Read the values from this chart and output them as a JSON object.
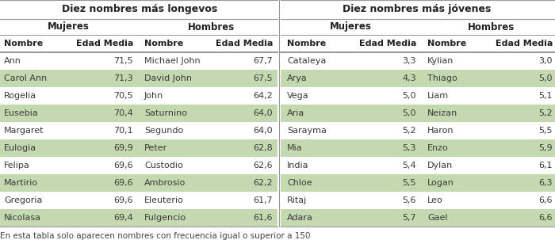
{
  "title_left": "Diez nombres más longevos",
  "title_right": "Diez nombres más jóvenes",
  "sub_mujeres": "Mujeres",
  "sub_hombres": "Hombres",
  "col_nombre": "Nombre",
  "col_edad": "Edad Media",
  "footnote": "En esta tabla solo aparecen nombres con frecuencia igual o superior a 150",
  "longevos": [
    [
      "Ann",
      "71,5",
      "Michael John",
      "67,7"
    ],
    [
      "Carol Ann",
      "71,3",
      "David John",
      "67,5"
    ],
    [
      "Rogelia",
      "70,5",
      "John",
      "64,2"
    ],
    [
      "Eusebia",
      "70,4",
      "Saturnino",
      "64,0"
    ],
    [
      "Margaret",
      "70,1",
      "Segundo",
      "64,0"
    ],
    [
      "Eulogia",
      "69,9",
      "Peter",
      "62,8"
    ],
    [
      "Felipa",
      "69,6",
      "Custodio",
      "62,6"
    ],
    [
      "Martirio",
      "69,6",
      "Ambrosio",
      "62,2"
    ],
    [
      "Gregoria",
      "69,6",
      "Eleuterio",
      "61,7"
    ],
    [
      "Nicolasa",
      "69,4",
      "Fulgencio",
      "61,6"
    ]
  ],
  "jovenes": [
    [
      "Cataleya",
      "3,3",
      "Kylian",
      "3,0"
    ],
    [
      "Arya",
      "4,3",
      "Thiago",
      "5,0"
    ],
    [
      "Vega",
      "5,0",
      "Liam",
      "5,1"
    ],
    [
      "Aria",
      "5,0",
      "Neizan",
      "5,2"
    ],
    [
      "Sarayma",
      "5,2",
      "Haron",
      "5,5"
    ],
    [
      "Mia",
      "5,3",
      "Enzo",
      "5,9"
    ],
    [
      "India",
      "5,4",
      "Dylan",
      "6,1"
    ],
    [
      "Chloe",
      "5,5",
      "Logan",
      "6,3"
    ],
    [
      "Ritaj",
      "5,6",
      "Leo",
      "6,6"
    ],
    [
      "Adara",
      "5,7",
      "Gael",
      "6,6"
    ]
  ],
  "color_stripe": "#c5d9b0",
  "color_bg": "#ffffff",
  "color_text": "#3a3a3a",
  "color_line": "#999999"
}
